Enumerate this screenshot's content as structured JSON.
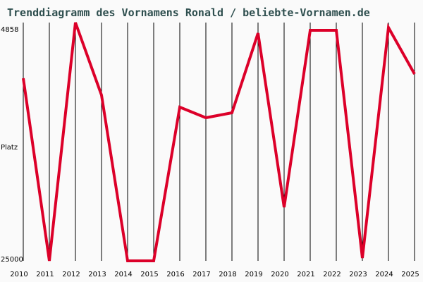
{
  "chart_data": {
    "type": "line",
    "title": "Trenddiagramm des Vornamens Ronald / beliebte-Vornamen.de",
    "ylabel": "Platz",
    "xlabel": "",
    "y_inverted": true,
    "ylim": [
      4858,
      25000
    ],
    "y_tick_labels": [
      "4858",
      "25000"
    ],
    "grid": "vertical",
    "categories": [
      "2010",
      "2011",
      "2012",
      "2013",
      "2014",
      "2015",
      "2016",
      "2017",
      "2018",
      "2019",
      "2020",
      "2021",
      "2022",
      "2023",
      "2024",
      "2025"
    ],
    "values": [
      9566,
      25000,
      4858,
      10996,
      25000,
      25000,
      12009,
      12903,
      12486,
      5752,
      20471,
      5514,
      5514,
      24761,
      5275,
      9208
    ],
    "line_color": "#dc0029",
    "title_color": "#2f4f4f"
  }
}
